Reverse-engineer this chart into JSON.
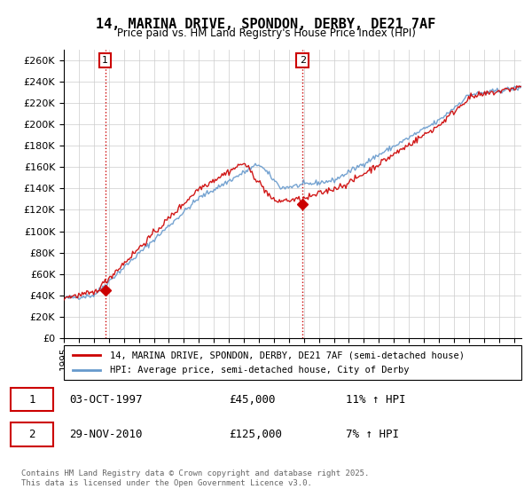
{
  "title": "14, MARINA DRIVE, SPONDON, DERBY, DE21 7AF",
  "subtitle": "Price paid vs. HM Land Registry's House Price Index (HPI)",
  "ylabel_ticks": [
    "£0",
    "£20K",
    "£40K",
    "£60K",
    "£80K",
    "£100K",
    "£120K",
    "£140K",
    "£160K",
    "£180K",
    "£200K",
    "£220K",
    "£240K",
    "£260K"
  ],
  "ylim": [
    0,
    270000
  ],
  "ytick_values": [
    0,
    20000,
    40000,
    60000,
    80000,
    100000,
    120000,
    140000,
    160000,
    180000,
    200000,
    220000,
    240000,
    260000
  ],
  "xmin": 1995.0,
  "xmax": 2025.5,
  "sale1_x": 1997.75,
  "sale1_y": 45000,
  "sale2_x": 2010.92,
  "sale2_y": 125000,
  "sale1_label": "1",
  "sale2_label": "2",
  "line_color_price": "#cc0000",
  "line_color_hpi": "#6699cc",
  "marker_color": "#cc0000",
  "grid_color": "#cccccc",
  "background_color": "#ffffff",
  "legend1_text": "14, MARINA DRIVE, SPONDON, DERBY, DE21 7AF (semi-detached house)",
  "legend2_text": "HPI: Average price, semi-detached house, City of Derby",
  "annotation1_date": "03-OCT-1997",
  "annotation1_price": "£45,000",
  "annotation1_hpi": "11% ↑ HPI",
  "annotation2_date": "29-NOV-2010",
  "annotation2_price": "£125,000",
  "annotation2_hpi": "7% ↑ HPI",
  "footnote": "Contains HM Land Registry data © Crown copyright and database right 2025.\nThis data is licensed under the Open Government Licence v3.0.",
  "fig_width": 6.0,
  "fig_height": 5.6,
  "dpi": 100
}
